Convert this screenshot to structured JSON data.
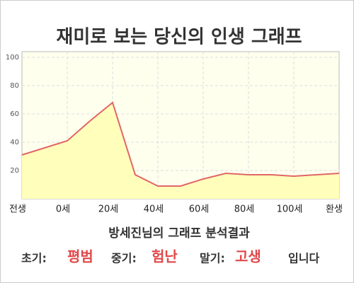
{
  "chart_data": {
    "type": "area",
    "title": "재미로 보는 당신의 인생 그래프",
    "categories": [
      "전생",
      null,
      "0세",
      null,
      "20세",
      null,
      "40세",
      null,
      "60세",
      null,
      "80세",
      null,
      "100세",
      null,
      "환생"
    ],
    "values": [
      31,
      36,
      41,
      55,
      68,
      17,
      9,
      9,
      14,
      18,
      17,
      17,
      16,
      17,
      18
    ],
    "color": "#e06666",
    "fill": "#ffffbb",
    "ylim": [
      0,
      100
    ],
    "yticks": [
      20,
      40,
      60,
      80,
      100
    ],
    "grid": true
  },
  "analysis": {
    "heading": "방세진님의 그래프 분석결과",
    "early_label": "초기:",
    "early": "평범",
    "middle_label": "중기:",
    "middle": "험난",
    "late_label": "말기:",
    "late": "고생",
    "ending": "입니다"
  }
}
